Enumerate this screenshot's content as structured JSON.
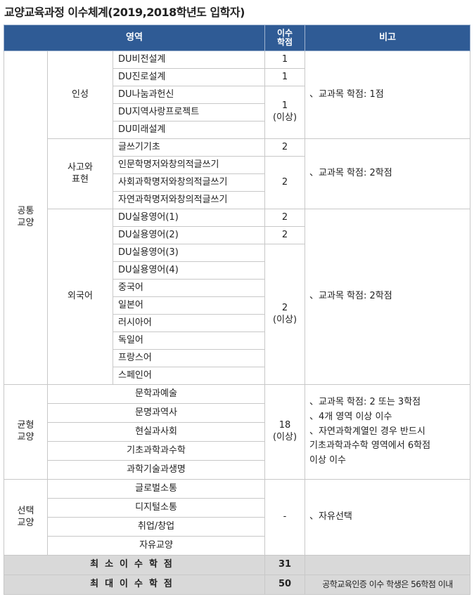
{
  "title": "교양교육과정 이수체계(2019,2018학년도 입학자)",
  "header": {
    "area": "영역",
    "credits": "이수\n학점",
    "note": "비고"
  },
  "common": {
    "label": "공통\n교양",
    "personality": {
      "label": "인성",
      "courses": [
        "DU비전설계",
        "DU진로설계",
        "DU나눔과헌신",
        "DU지역사랑프로젝트",
        "DU미래설계"
      ],
      "credits": [
        "1",
        "1",
        "1\n(이상)"
      ],
      "note": "、교과목 학점: 1점"
    },
    "thinking": {
      "label": "사고와\n표현",
      "courses": [
        "글쓰기기초",
        "인문학명저와창의적글쓰기",
        "사회과학명저와창의적글쓰기",
        "자연과학명저와창의적글쓰기"
      ],
      "credits": [
        "2",
        "2"
      ],
      "note": "、교과목 학점: 2학점"
    },
    "language": {
      "label": "외국어",
      "courses": [
        "DU실용영어(1)",
        "DU실용영어(2)",
        "DU실용영어(3)",
        "DU실용영어(4)",
        "중국어",
        "일본어",
        "러시아어",
        "독일어",
        "프랑스어",
        "스페인어"
      ],
      "credits": [
        "2",
        "2",
        "2\n(이상)"
      ],
      "note": "、교과목 학점: 2학점"
    }
  },
  "balanced": {
    "label": "균형\n교양",
    "areas": [
      "문학과예술",
      "문명과역사",
      "현실과사회",
      "기초과학과수학",
      "과학기술과생명"
    ],
    "credits": "18\n(이상)",
    "note": "、교과목 학점: 2 또는 3학점\n、4개 영역 이상 이수\n、자연과학계열인 경우 반드시\n  기초과학과수학 영역에서 6학점\n  이상 이수"
  },
  "elective": {
    "label": "선택\n교양",
    "areas": [
      "글로벌소통",
      "디지털소통",
      "취업/창업",
      "자유교양"
    ],
    "credits": "-",
    "note": "、자유선택"
  },
  "min": {
    "label": "최소이수학점",
    "credits": "31",
    "note": ""
  },
  "max": {
    "label": "최대이수학점",
    "credits": "50",
    "note": "공학교육인증 이수 학생은 56학점 이내"
  }
}
